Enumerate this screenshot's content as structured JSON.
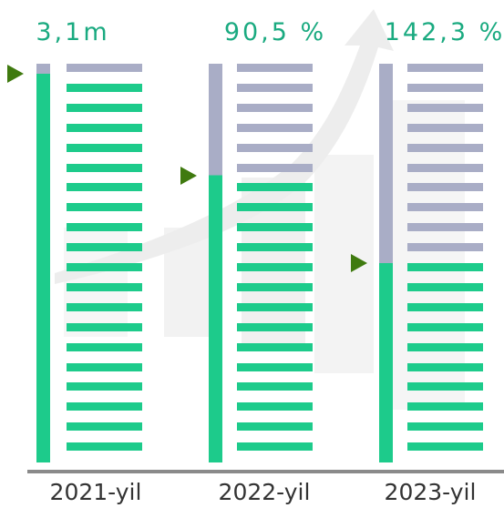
{
  "colors": {
    "filled": "#1dcb8b",
    "empty": "#a9adc6",
    "marker": "#3f7a0f",
    "label": "#1aaa80",
    "axis": "#8a8a8a"
  },
  "chart_data": {
    "type": "bar",
    "categories": [
      "2021-yil",
      "2022-yil",
      "2023-yil"
    ],
    "value_labels": [
      "3,1m",
      "90,5 %",
      "142,3 %"
    ],
    "fill_fraction": [
      0.975,
      0.72,
      0.5
    ],
    "segments_per_bar": 20
  }
}
